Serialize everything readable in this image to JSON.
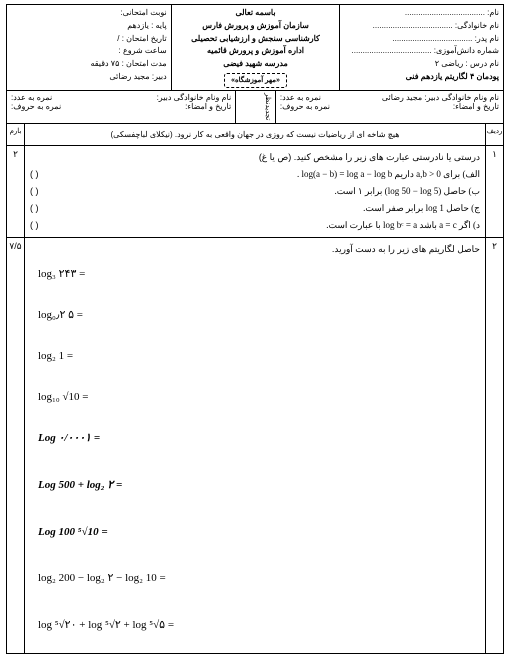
{
  "header": {
    "right": {
      "name_lbl": "نام:",
      "family_lbl": "نام خانوادگی:",
      "father_lbl": "نام پدر:",
      "studentno_lbl": "شماره دانش‌آموزی:",
      "course_lbl": "نام درس : ریاضی ۲",
      "chapter_lbl": "پودمان ۴ لگاریتم  یازدهم فنی",
      "dots": "...................................."
    },
    "center": {
      "l1": "باسمه تعالی",
      "l2": "سازمان آموزش و پرورش فارس",
      "l3": "کارشناسی سنجش و ارزشیابی تحصیلی",
      "l4": "اداره آموزش و پرورش قائمیه",
      "l5": "مدرسه شهید فیضی",
      "l6": "«مهر آموزشگاه»"
    },
    "left": {
      "term": "نوبت امتحانی:",
      "grade": "پایه : یازدهم",
      "date": "تاریخ امتحان :   /",
      "start": "ساعت شروع :",
      "duration": "مدت امتحان :  ۷۵  دقیقه",
      "teacher": "دبیر: مجید رضائی"
    }
  },
  "subheader": {
    "right_l1": "نام ونام خانوادگی دبیر: مجید رضائی",
    "right_l2": "تاریخ و امضاء:",
    "right_s1": "نمره به عدد:",
    "right_s2": "نمره به حروف:",
    "mid": "تجدیدنظر",
    "left_l1": "نام ونام خانوادگی دبیر:",
    "left_l2": "تاریخ و امضاء:",
    "left_s1": "نمره به عدد:",
    "left_s2": "نمره به حروف:"
  },
  "quote": "هیچ شاخه ای از ریاضیات نیست که روزی در جهان واقعی به کار نرود. (نیکلای لباچفسکی)",
  "colhead": {
    "row": "ردیف",
    "score": "بارم"
  },
  "q1": {
    "num": "۱",
    "score": "۲",
    "intro": "درستی یا نادرستی عبارت های زیر را مشخص کنید. (ص یا غ)",
    "a": "الف) برای a,b > 0 داریم log(a − b) = log a − log b .",
    "b": "ب) حاصل (log 50 − log 5) برابر ۱ است.",
    "c": "ج) حاصل log 1  برابر صفر است.",
    "d": "د) اگر a = c باشد log bᶜ = a  با عبارت  است.",
    "paren": "(          )"
  },
  "q2": {
    "num": "۲",
    "score": "۷/۵",
    "intro": "حاصل لگاریتم های زیر را به دست آورید.",
    "m1": "log₃ ۲۴۳ =",
    "m2": "log₀٫۲ ۵ =",
    "m3": "log₂ 1 =",
    "m4": "log₁₀ √10 =",
    "m5": "Log ۰/۰۰۰۱ =",
    "m6": "Log 500 + log₂ ۲ =",
    "m7": "Log 100 ⁵√10 =",
    "m8": "log₂ 200 − log₂ ۲ − log₂ 10 =",
    "m9": "log ⁵√۲۰ + log ⁵√۲ + log ⁵√۵ ="
  }
}
